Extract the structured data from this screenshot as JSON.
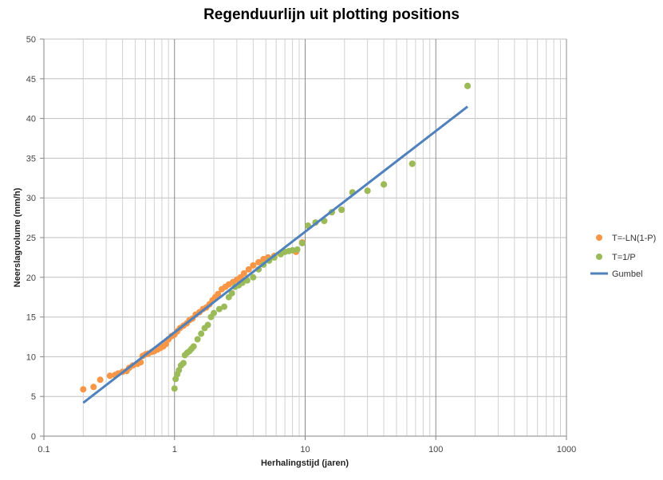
{
  "chart_data": {
    "type": "scatter",
    "title": "Regenduurlijn uit plotting positions",
    "xlabel": "Herhalingstijd (jaren)",
    "ylabel": "Neerslagvolume (mm/h)",
    "x_scale": "log",
    "xlim": [
      0.1,
      1000
    ],
    "ylim": [
      0,
      50
    ],
    "x_ticks": [
      "0.1",
      "1",
      "10",
      "100",
      "1000"
    ],
    "y_ticks": [
      "0",
      "5",
      "10",
      "15",
      "20",
      "25",
      "30",
      "35",
      "40",
      "45",
      "50"
    ],
    "grid": true,
    "legend_position": "right",
    "series": [
      {
        "name": "T=-LN(1-P)",
        "kind": "scatter",
        "color": "#f79646",
        "points": [
          [
            0.2,
            5.9
          ],
          [
            0.24,
            6.2
          ],
          [
            0.27,
            7.1
          ],
          [
            0.32,
            7.6
          ],
          [
            0.35,
            7.7
          ],
          [
            0.37,
            7.9
          ],
          [
            0.4,
            8.1
          ],
          [
            0.43,
            8.2
          ],
          [
            0.45,
            8.6
          ],
          [
            0.48,
            8.9
          ],
          [
            0.52,
            9.1
          ],
          [
            0.55,
            9.3
          ],
          [
            0.57,
            10.1
          ],
          [
            0.6,
            10.3
          ],
          [
            0.63,
            10.4
          ],
          [
            0.67,
            10.6
          ],
          [
            0.7,
            10.7
          ],
          [
            0.74,
            10.9
          ],
          [
            0.78,
            11.1
          ],
          [
            0.82,
            11.3
          ],
          [
            0.86,
            11.6
          ],
          [
            0.9,
            12.2
          ],
          [
            0.95,
            12.6
          ],
          [
            1.0,
            12.8
          ],
          [
            1.05,
            13.2
          ],
          [
            1.1,
            13.6
          ],
          [
            1.17,
            13.9
          ],
          [
            1.24,
            14.2
          ],
          [
            1.3,
            14.6
          ],
          [
            1.37,
            14.8
          ],
          [
            1.45,
            15.3
          ],
          [
            1.55,
            15.6
          ],
          [
            1.65,
            16.0
          ],
          [
            1.75,
            16.2
          ],
          [
            1.85,
            16.6
          ],
          [
            1.95,
            17.1
          ],
          [
            2.05,
            17.5
          ],
          [
            2.15,
            17.9
          ],
          [
            2.3,
            18.5
          ],
          [
            2.45,
            18.8
          ],
          [
            2.6,
            19.1
          ],
          [
            2.8,
            19.4
          ],
          [
            3.0,
            19.7
          ],
          [
            3.2,
            20.0
          ],
          [
            3.4,
            20.5
          ],
          [
            3.7,
            21.0
          ],
          [
            4.0,
            21.5
          ],
          [
            4.4,
            21.9
          ],
          [
            4.8,
            22.3
          ],
          [
            5.2,
            22.5
          ],
          [
            5.8,
            22.7
          ],
          [
            6.5,
            23.0
          ],
          [
            8.5,
            23.2
          ],
          [
            9.5,
            24.4
          ],
          [
            10.5,
            26.5
          ],
          [
            12.0,
            26.9
          ],
          [
            14.0,
            27.1
          ],
          [
            16.0,
            28.2
          ],
          [
            19.0,
            28.5
          ],
          [
            23.0,
            30.7
          ],
          [
            30.0,
            30.9
          ],
          [
            40.0,
            31.7
          ],
          [
            66.0,
            34.3
          ],
          [
            175.0,
            44.1
          ]
        ]
      },
      {
        "name": "T=1/P",
        "kind": "scatter",
        "color": "#9bbb59",
        "points": [
          [
            1.0,
            6.0
          ],
          [
            1.02,
            7.2
          ],
          [
            1.05,
            7.8
          ],
          [
            1.08,
            8.3
          ],
          [
            1.12,
            8.9
          ],
          [
            1.17,
            9.2
          ],
          [
            1.2,
            10.2
          ],
          [
            1.25,
            10.5
          ],
          [
            1.3,
            10.7
          ],
          [
            1.35,
            11.0
          ],
          [
            1.4,
            11.3
          ],
          [
            1.5,
            12.2
          ],
          [
            1.6,
            12.9
          ],
          [
            1.7,
            13.6
          ],
          [
            1.8,
            14.0
          ],
          [
            1.9,
            15.0
          ],
          [
            2.0,
            15.5
          ],
          [
            2.2,
            16.0
          ],
          [
            2.4,
            16.3
          ],
          [
            2.6,
            17.5
          ],
          [
            2.75,
            18.0
          ],
          [
            2.9,
            18.8
          ],
          [
            3.1,
            19.0
          ],
          [
            3.3,
            19.3
          ],
          [
            3.6,
            19.6
          ],
          [
            4.0,
            20.0
          ],
          [
            4.4,
            21.0
          ],
          [
            4.8,
            21.6
          ],
          [
            5.3,
            22.1
          ],
          [
            5.8,
            22.5
          ],
          [
            6.5,
            22.9
          ],
          [
            7.0,
            23.2
          ],
          [
            7.5,
            23.3
          ],
          [
            8.0,
            23.4
          ],
          [
            8.7,
            23.5
          ],
          [
            9.5,
            24.3
          ],
          [
            10.5,
            26.5
          ],
          [
            12.0,
            26.9
          ],
          [
            14.0,
            27.1
          ],
          [
            16.0,
            28.2
          ],
          [
            19.0,
            28.5
          ],
          [
            23.0,
            30.7
          ],
          [
            30.0,
            30.9
          ],
          [
            40.0,
            31.7
          ],
          [
            66.0,
            34.3
          ],
          [
            175.0,
            44.1
          ]
        ]
      },
      {
        "name": "Gumbel",
        "kind": "line",
        "color": "#4f81bd",
        "points": [
          [
            0.2,
            4.2
          ],
          [
            175.0,
            41.5
          ]
        ]
      }
    ]
  }
}
